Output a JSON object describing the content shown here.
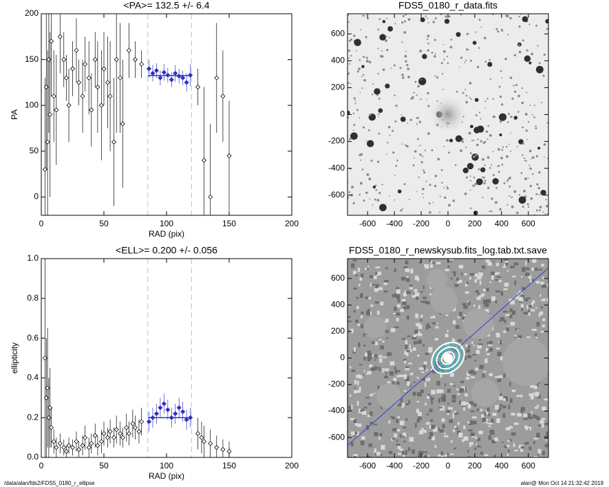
{
  "chart_data": [
    {
      "type": "scatter",
      "title": "<PA>= 132.5 +/-   6.4",
      "x_label": "RAD (pix)",
      "y_label": "PA",
      "xlim": [
        0,
        200
      ],
      "ylim": [
        -20,
        200
      ],
      "xticks": [
        0,
        50,
        100,
        150,
        200
      ],
      "yticks": [
        0,
        50,
        100,
        150,
        200
      ],
      "vlines": [
        85,
        120
      ],
      "vline_color": "#8fe0e0",
      "mean_line": {
        "value": 132.5,
        "x": [
          85,
          120
        ],
        "color": "#3030c0"
      },
      "series": [
        {
          "color": "#000000",
          "x": [
            3,
            4,
            5,
            6,
            7,
            8,
            10,
            12,
            15,
            18,
            20,
            22,
            25,
            28,
            30,
            33,
            35,
            38,
            40,
            43,
            45,
            48,
            50,
            53,
            55,
            58,
            60,
            63,
            65,
            70,
            75,
            80,
            125,
            130,
            135,
            140,
            145,
            150
          ],
          "values": [
            30,
            120,
            60,
            150,
            90,
            170,
            110,
            95,
            175,
            150,
            130,
            100,
            140,
            160,
            125,
            110,
            145,
            130,
            95,
            150,
            120,
            100,
            140,
            125,
            110,
            60,
            150,
            130,
            80,
            160,
            150,
            145,
            120,
            40,
            0,
            130,
            110,
            45
          ],
          "errors": [
            100,
            90,
            100,
            80,
            90,
            60,
            50,
            60,
            40,
            30,
            25,
            40,
            30,
            35,
            25,
            40,
            30,
            40,
            40,
            30,
            50,
            60,
            40,
            50,
            60,
            70,
            80,
            60,
            70,
            30,
            20,
            15,
            20,
            80,
            80,
            60,
            50,
            60
          ]
        },
        {
          "color": "#3030c0",
          "x": [
            86,
            89,
            92,
            95,
            98,
            101,
            104,
            107,
            110,
            113,
            116,
            119
          ],
          "values": [
            140,
            135,
            138,
            130,
            136,
            133,
            128,
            135,
            132,
            130,
            125,
            133
          ],
          "errors": [
            10,
            9,
            8,
            8,
            9,
            8,
            8,
            9,
            8,
            8,
            10,
            12
          ]
        }
      ]
    },
    {
      "type": "image",
      "title": "FDS5_0180_r_data.fits",
      "xlim": [
        -750,
        750
      ],
      "ylim": [
        -750,
        750
      ],
      "xticks": [
        -600,
        -400,
        -200,
        0,
        200,
        400,
        600
      ],
      "yticks": [
        -600,
        -400,
        -200,
        0,
        200,
        400,
        600
      ]
    },
    {
      "type": "scatter",
      "title": "<ELL>= 0.200 +/-  0.056",
      "x_label": "RAD (pix)",
      "y_label": "ellipticity",
      "xlim": [
        0,
        200
      ],
      "ylim": [
        0,
        1.0
      ],
      "xticks": [
        0,
        50,
        100,
        150,
        200
      ],
      "yticks": [
        {
          "value": 0,
          "label": "0.0"
        },
        0.2,
        0.4,
        0.6,
        0.8,
        {
          "value": 1,
          "label": "1.0"
        }
      ],
      "vlines": [
        85,
        120
      ],
      "vline_color": "#8fe0e0",
      "mean_line": {
        "value": 0.2,
        "x": [
          85,
          120
        ],
        "color": "#3030c0"
      },
      "series": [
        {
          "color": "#000000",
          "x": [
            3,
            4,
            5,
            6,
            7,
            8,
            10,
            12,
            15,
            18,
            20,
            22,
            25,
            28,
            30,
            33,
            35,
            38,
            40,
            43,
            45,
            48,
            50,
            53,
            55,
            58,
            60,
            63,
            65,
            68,
            70,
            73,
            75,
            78,
            80,
            125,
            128,
            130,
            135,
            140,
            145,
            150
          ],
          "values": [
            0.5,
            0.3,
            0.35,
            0.2,
            0.25,
            0.15,
            0.08,
            0.05,
            0.07,
            0.05,
            0.03,
            0.06,
            0.05,
            0.08,
            0.04,
            0.06,
            0.1,
            0.05,
            0.07,
            0.11,
            0.06,
            0.08,
            0.12,
            0.1,
            0.13,
            0.1,
            0.14,
            0.12,
            0.1,
            0.15,
            0.12,
            0.17,
            0.15,
            0.13,
            0.18,
            0.12,
            0.1,
            0.08,
            0.07,
            0.05,
            0.04,
            0.03
          ],
          "errors": [
            0.5,
            0.3,
            0.3,
            0.2,
            0.2,
            0.1,
            0.06,
            0.05,
            0.05,
            0.04,
            0.03,
            0.04,
            0.04,
            0.05,
            0.04,
            0.05,
            0.06,
            0.05,
            0.05,
            0.06,
            0.05,
            0.06,
            0.06,
            0.05,
            0.06,
            0.05,
            0.07,
            0.06,
            0.05,
            0.07,
            0.06,
            0.07,
            0.06,
            0.06,
            0.07,
            0.08,
            0.08,
            0.08,
            0.07,
            0.06,
            0.05,
            0.05
          ]
        },
        {
          "color": "#3030c0",
          "x": [
            86,
            89,
            92,
            95,
            98,
            101,
            104,
            107,
            110,
            113,
            116,
            119
          ],
          "values": [
            0.18,
            0.2,
            0.22,
            0.25,
            0.27,
            0.24,
            0.2,
            0.22,
            0.25,
            0.23,
            0.19,
            0.2
          ],
          "errors": [
            0.05,
            0.05,
            0.05,
            0.05,
            0.05,
            0.05,
            0.05,
            0.05,
            0.05,
            0.05,
            0.05,
            0.05
          ]
        }
      ]
    },
    {
      "type": "image",
      "title": "FDS5_0180_r_newskysub.fits_log.tab.txt.save",
      "xlim": [
        -750,
        750
      ],
      "ylim": [
        -750,
        750
      ],
      "xticks": [
        -600,
        -400,
        -200,
        0,
        200,
        400,
        600
      ],
      "yticks": [
        -600,
        -400,
        -200,
        0,
        200,
        400,
        600
      ]
    }
  ],
  "footer": {
    "left": "/data/alan/fds2/FDS5_0180_r_ellipse",
    "right": "alan@  Mon Oct 14 21:32:42 2019"
  }
}
